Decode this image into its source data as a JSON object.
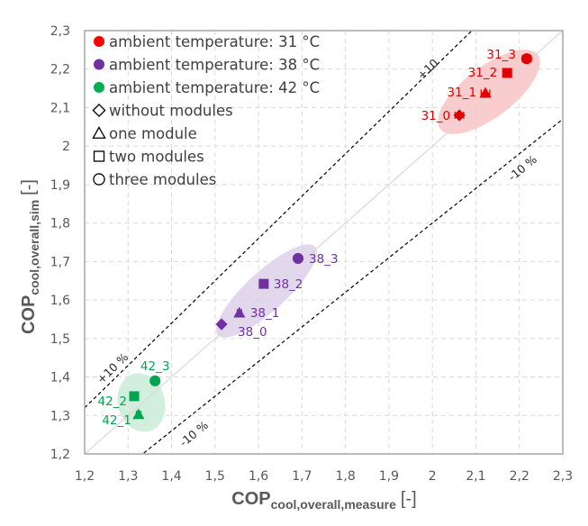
{
  "chart_data": {
    "type": "scatter",
    "title": "",
    "xlabel": {
      "main": "COP",
      "sub": "cool,overall,measure",
      "unit": "[-]"
    },
    "ylabel": {
      "main": "COP",
      "sub": "cool,overall,sim",
      "unit": "[-]"
    },
    "xlim": [
      1.2,
      2.3
    ],
    "ylim": [
      1.2,
      2.3
    ],
    "x_ticks": [
      "1,2",
      "1,3",
      "1,4",
      "1,5",
      "1,6",
      "1,7",
      "1,8",
      "1,9",
      "2",
      "2,1",
      "2,2",
      "2,3"
    ],
    "y_ticks": [
      "1,2",
      "1,3",
      "1,4",
      "1,5",
      "1,6",
      "1,7",
      "1,8",
      "1,9",
      "2",
      "2,1",
      "2,2",
      "2,3"
    ],
    "grid": true,
    "legend_position": "top-left",
    "legend": [
      {
        "label": "ambient temperature: 31 °C",
        "symbol": "filled-circle",
        "color": "#ff0000"
      },
      {
        "label": "ambient temperature: 38 °C",
        "symbol": "filled-circle",
        "color": "#7030a0"
      },
      {
        "label": "ambient temperature: 42 °C",
        "symbol": "filled-circle",
        "color": "#00b050"
      },
      {
        "label": "without modules",
        "symbol": "diamond",
        "color": "#000000"
      },
      {
        "label": "one module",
        "symbol": "triangle",
        "color": "#000000"
      },
      {
        "label": "two modules",
        "symbol": "square",
        "color": "#000000"
      },
      {
        "label": "three modules",
        "symbol": "circle",
        "color": "#000000"
      }
    ],
    "reference_lines": [
      {
        "name": "identity",
        "slope": 1.0,
        "style": "solid",
        "color": "#d9d9d9"
      },
      {
        "name": "plus-10",
        "slope": 1.1,
        "style": "dashed",
        "color": "#000000",
        "labels": [
          "+10",
          "+10 %"
        ]
      },
      {
        "name": "minus-10",
        "slope": 0.9,
        "style": "dashed",
        "color": "#000000",
        "labels": [
          "-10 %",
          "-10 %"
        ]
      }
    ],
    "series": [
      {
        "name": "31 °C",
        "color": "#e00000",
        "ellipse_color": "#f8c4c4",
        "points": [
          {
            "label": "31_0",
            "marker": "diamond",
            "x": 2.062,
            "y": 2.08,
            "xerr": 0.01
          },
          {
            "label": "31_1",
            "marker": "triangle",
            "x": 2.122,
            "y": 2.138,
            "xerr": 0.01
          },
          {
            "label": "31_2",
            "marker": "square",
            "x": 2.172,
            "y": 2.19,
            "xerr": 0.0
          },
          {
            "label": "31_3",
            "marker": "circle",
            "x": 2.217,
            "y": 2.227,
            "xerr": 0.01
          }
        ]
      },
      {
        "name": "38 °C",
        "color": "#7030a0",
        "ellipse_color": "#ddd0ea",
        "points": [
          {
            "label": "38_0",
            "marker": "diamond",
            "x": 1.515,
            "y": 1.537,
            "xerr": 0.005
          },
          {
            "label": "38_1",
            "marker": "triangle",
            "x": 1.556,
            "y": 1.567,
            "xerr": 0.005
          },
          {
            "label": "38_2",
            "marker": "square",
            "x": 1.612,
            "y": 1.642,
            "xerr": 0.0
          },
          {
            "label": "38_3",
            "marker": "circle",
            "x": 1.691,
            "y": 1.708,
            "xerr": 0.005
          }
        ]
      },
      {
        "name": "42 °C",
        "color": "#00a550",
        "ellipse_color": "#c9ecd6",
        "points": [
          {
            "label": "42_1",
            "marker": "triangle",
            "x": 1.324,
            "y": 1.303,
            "xerr": 0.005
          },
          {
            "label": "42_2",
            "marker": "square",
            "x": 1.314,
            "y": 1.35,
            "xerr": 0.0
          },
          {
            "label": "42_3",
            "marker": "circle",
            "x": 1.362,
            "y": 1.39,
            "xerr": 0.0
          }
        ]
      }
    ]
  }
}
